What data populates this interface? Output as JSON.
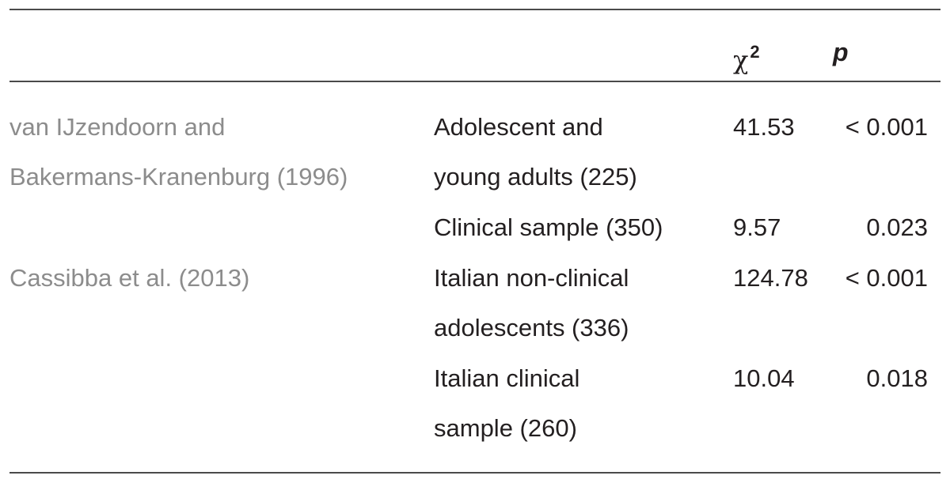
{
  "table": {
    "header": {
      "chi_symbol": "χ",
      "chi_superscript": "2",
      "p_label": "p"
    },
    "rows": [
      {
        "study_line1": "van IJzendoorn and",
        "study_line2": "Bakermans-Kranenburg (1996)",
        "sample_line1": "Adolescent and",
        "sample_line2": "young adults (225)",
        "chi2": "41.53",
        "p": "< 0.001"
      },
      {
        "study_line1": "",
        "sample_line1": "Clinical sample (350)",
        "chi2": "9.57",
        "p": "0.023"
      },
      {
        "study_line1": "Cassibba et al. (2013)",
        "sample_line1": "Italian non-clinical",
        "sample_line2": "adolescents (336)",
        "chi2": "124.78",
        "p": "< 0.001"
      },
      {
        "study_line1": "",
        "sample_line1": "Italian clinical",
        "sample_line2": "sample (260)",
        "chi2": "10.04",
        "p": "0.018"
      }
    ]
  }
}
